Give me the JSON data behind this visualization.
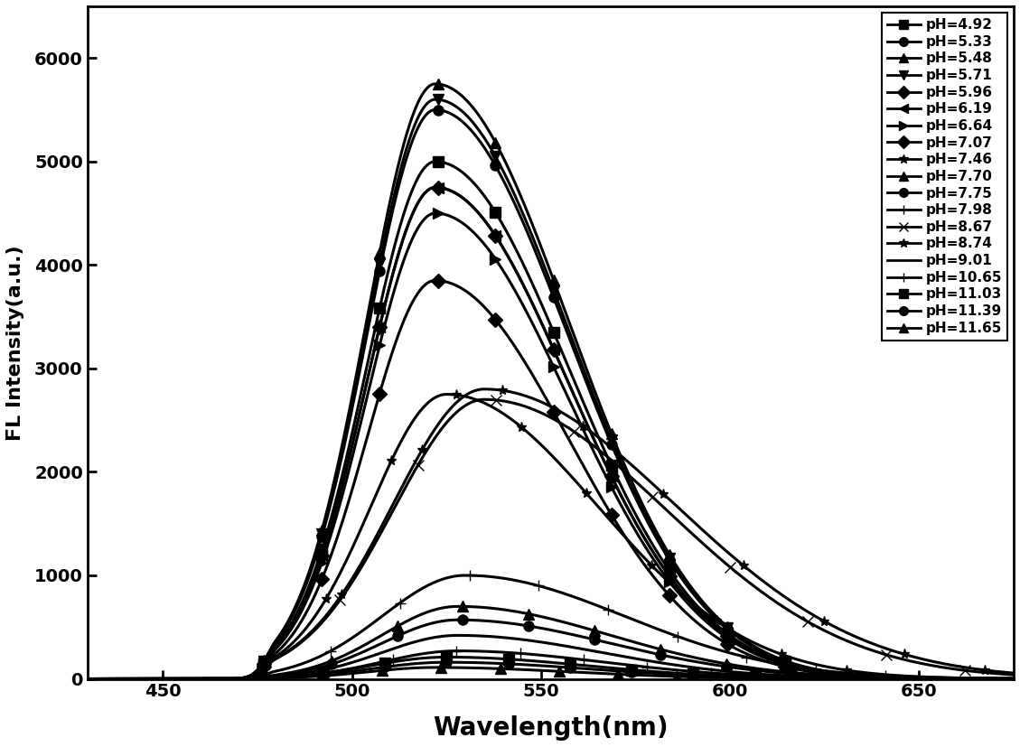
{
  "title": "",
  "xlabel": "Wavelength(nm)",
  "ylabel": "FL Intensity(a.u.)",
  "xlim": [
    430,
    675
  ],
  "ylim": [
    0,
    6500
  ],
  "xticks": [
    450,
    500,
    550,
    600,
    650
  ],
  "yticks": [
    0,
    1000,
    2000,
    3000,
    4000,
    5000,
    6000
  ],
  "series": [
    {
      "label": "pH=4.92",
      "peak": 522,
      "amplitude": 5000,
      "sigma_l": 18,
      "sigma_r": 35,
      "marker": "s"
    },
    {
      "label": "pH=5.33",
      "peak": 522,
      "amplitude": 5500,
      "sigma_l": 18,
      "sigma_r": 35,
      "marker": "o"
    },
    {
      "label": "pH=5.48",
      "peak": 522,
      "amplitude": 5750,
      "sigma_l": 18,
      "sigma_r": 35,
      "marker": "^"
    },
    {
      "label": "pH=5.71",
      "peak": 522,
      "amplitude": 5600,
      "sigma_l": 18,
      "sigma_r": 35,
      "marker": "v"
    },
    {
      "label": "pH=5.96",
      "peak": 522,
      "amplitude": 4750,
      "sigma_l": 18,
      "sigma_r": 35,
      "marker": "D"
    },
    {
      "label": "pH=6.19",
      "peak": 522,
      "amplitude": 4750,
      "sigma_l": 18,
      "sigma_r": 35,
      "marker": "<"
    },
    {
      "label": "pH=6.64",
      "peak": 522,
      "amplitude": 4500,
      "sigma_l": 18,
      "sigma_r": 35,
      "marker": ">"
    },
    {
      "label": "pH=7.07",
      "peak": 522,
      "amplitude": 3850,
      "sigma_l": 18,
      "sigma_r": 35,
      "marker": "D"
    },
    {
      "label": "pH=7.46",
      "peak": 525,
      "amplitude": 2750,
      "sigma_l": 20,
      "sigma_r": 40,
      "marker": "*"
    },
    {
      "label": "pH=7.70",
      "peak": 528,
      "amplitude": 700,
      "sigma_l": 20,
      "sigma_r": 40,
      "marker": "^"
    },
    {
      "label": "pH=7.75",
      "peak": 528,
      "amplitude": 570,
      "sigma_l": 20,
      "sigma_r": 40,
      "marker": "o"
    },
    {
      "label": "pH=7.98",
      "peak": 530,
      "amplitude": 1000,
      "sigma_l": 22,
      "sigma_r": 42,
      "marker": "+"
    },
    {
      "label": "pH=8.67",
      "peak": 535,
      "amplitude": 2700,
      "sigma_l": 24,
      "sigma_r": 48,
      "marker": "x"
    },
    {
      "label": "pH=8.74",
      "peak": 535,
      "amplitude": 2800,
      "sigma_l": 24,
      "sigma_r": 50,
      "marker": "*"
    },
    {
      "label": "pH=9.01",
      "peak": 528,
      "amplitude": 420,
      "sigma_l": 20,
      "sigma_r": 38,
      "marker": "None"
    },
    {
      "label": "pH=10.65",
      "peak": 528,
      "amplitude": 270,
      "sigma_l": 20,
      "sigma_r": 38,
      "marker": "+"
    },
    {
      "label": "pH=11.03",
      "peak": 525,
      "amplitude": 210,
      "sigma_l": 20,
      "sigma_r": 37,
      "marker": "s"
    },
    {
      "label": "pH=11.39",
      "peak": 525,
      "amplitude": 160,
      "sigma_l": 20,
      "sigma_r": 37,
      "marker": "o"
    },
    {
      "label": "pH=11.65",
      "peak": 522,
      "amplitude": 110,
      "sigma_l": 18,
      "sigma_r": 36,
      "marker": "^"
    }
  ],
  "background_color": "#ffffff",
  "line_color": "#000000",
  "linewidth": 2.2,
  "markersize": 8,
  "n_markers": 10
}
